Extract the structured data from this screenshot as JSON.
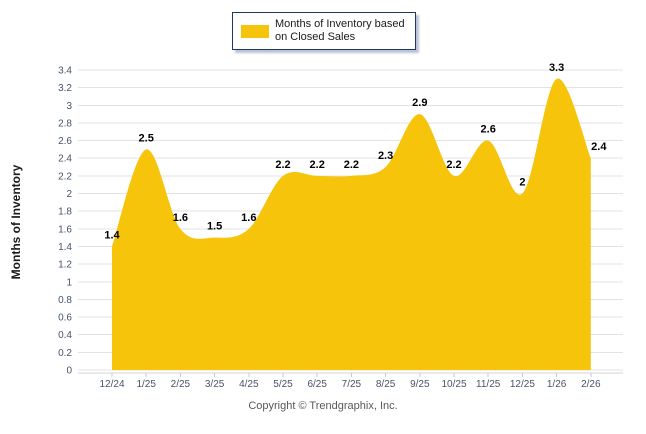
{
  "legend": {
    "label": "Months of Inventory based on Closed Sales"
  },
  "footer": {
    "text": "Copyright © Trendgraphix, Inc."
  },
  "chart_data": {
    "type": "area",
    "title": "",
    "categories": [
      "12/24",
      "1/25",
      "2/25",
      "3/25",
      "4/25",
      "5/25",
      "6/25",
      "7/25",
      "8/25",
      "9/25",
      "10/25",
      "11/25",
      "12/25",
      "1/26",
      "2/26"
    ],
    "series": [
      {
        "name": "Months of Inventory based on Closed Sales",
        "values": [
          1.4,
          2.5,
          1.6,
          1.5,
          1.6,
          2.2,
          2.2,
          2.2,
          2.3,
          2.9,
          2.2,
          2.6,
          2,
          3.3,
          2.4
        ]
      }
    ],
    "xlabel": "",
    "ylabel": "Months of Inventory",
    "ylim": [
      0,
      3.4
    ],
    "ytick_step": 0.2,
    "grid": true,
    "legend_position": "top-center",
    "smoothing": "spline",
    "data_labels_shown": true,
    "colors": {
      "area": "#F5C40B",
      "grid": "#E3E3E3",
      "axis_line": "#D6D6D6",
      "tick_mark": "#C9C9C9",
      "tick_label": "#44546A",
      "data_label": "#000000",
      "axis_title": "#1A1A1A",
      "legend_border": "#1F3864",
      "footer_text": "#595959"
    }
  }
}
